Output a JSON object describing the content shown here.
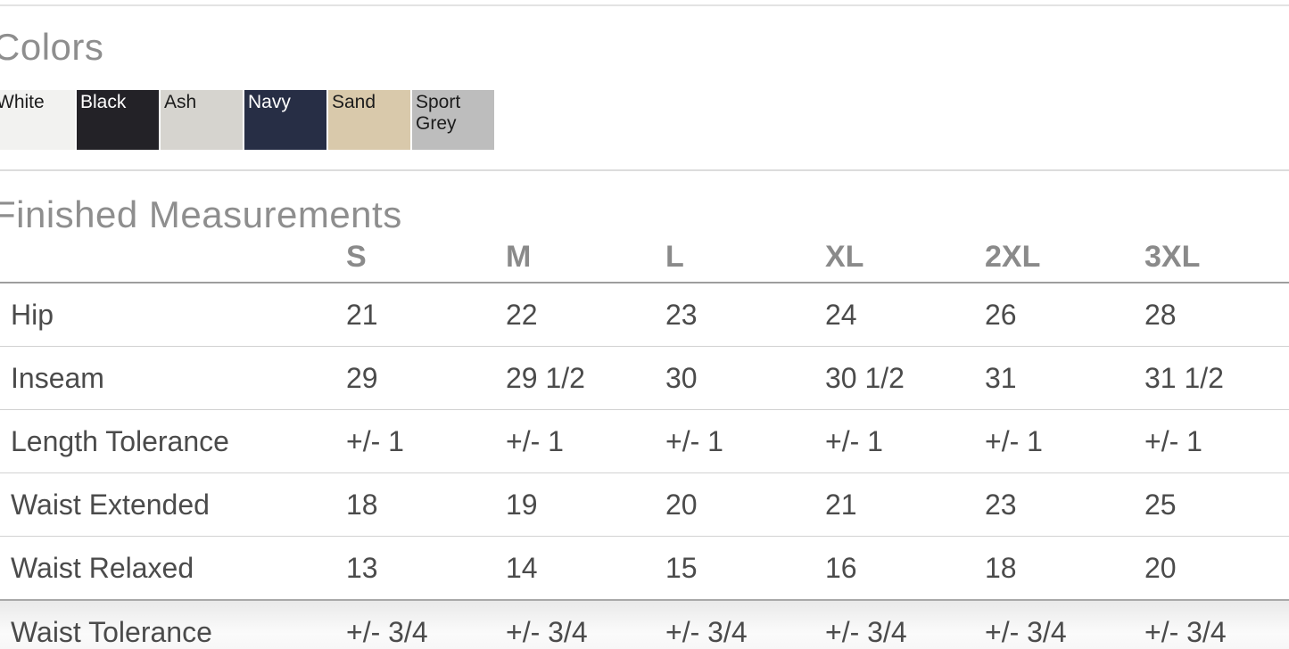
{
  "colors_section": {
    "title": "Colors",
    "swatches": [
      {
        "name": "White",
        "bg": "#f2f2f0",
        "text_color": "#1c1c1c"
      },
      {
        "name": "Black",
        "bg": "#232227",
        "text_color": "#ffffff"
      },
      {
        "name": "Ash",
        "bg": "#d6d4cf",
        "text_color": "#1c1c1c"
      },
      {
        "name": "Navy",
        "bg": "#272e45",
        "text_color": "#ffffff"
      },
      {
        "name": "Sand",
        "bg": "#d9c9ab",
        "text_color": "#1c1c1c"
      },
      {
        "name": "Sport Grey",
        "bg": "#bdbdbd",
        "text_color": "#1c1c1c"
      }
    ]
  },
  "measurements_section": {
    "title": "Finished Measurements",
    "columns": [
      "S",
      "M",
      "L",
      "XL",
      "2XL",
      "3XL"
    ],
    "rows": [
      {
        "label": "Hip",
        "values": [
          "21",
          "22",
          "23",
          "24",
          "26",
          "28"
        ]
      },
      {
        "label": "Inseam",
        "values": [
          "29",
          "29 1/2",
          "30",
          "30 1/2",
          "31",
          "31 1/2"
        ]
      },
      {
        "label": "Length Tolerance",
        "values": [
          "+/- 1",
          "+/- 1",
          "+/- 1",
          "+/- 1",
          "+/- 1",
          "+/- 1"
        ]
      },
      {
        "label": "Waist Extended",
        "values": [
          "18",
          "19",
          "20",
          "21",
          "23",
          "25"
        ]
      },
      {
        "label": "Waist Relaxed",
        "values": [
          "13",
          "14",
          "15",
          "16",
          "18",
          "20"
        ]
      },
      {
        "label": "Waist Tolerance",
        "values": [
          "+/- 3/4",
          "+/- 3/4",
          "+/- 3/4",
          "+/- 3/4",
          "+/- 3/4",
          "+/- 3/4"
        ]
      }
    ]
  }
}
